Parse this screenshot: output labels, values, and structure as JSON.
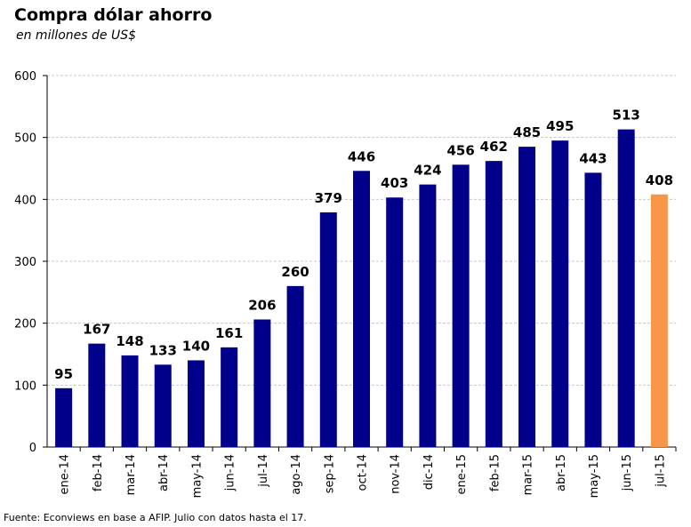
{
  "title": "Compra dólar ahorro",
  "subtitle": "en millones de US$",
  "source": "Fuente: Econviews en base a AFIP. Julio con datos hasta el 17.",
  "colors": {
    "bar": "#00008B",
    "highlight": "#F79646",
    "grid": "#C8C8C8"
  },
  "chart_data": {
    "type": "bar",
    "categories": [
      "ene-14",
      "feb-14",
      "mar-14",
      "abr-14",
      "may-14",
      "jun-14",
      "jul-14",
      "ago-14",
      "sep-14",
      "oct-14",
      "nov-14",
      "dic-14",
      "ene-15",
      "feb-15",
      "mar-15",
      "abr-15",
      "may-15",
      "jun-15",
      "jul-15"
    ],
    "values": [
      95,
      167,
      148,
      133,
      140,
      161,
      206,
      260,
      379,
      446,
      403,
      424,
      456,
      462,
      485,
      495,
      443,
      513,
      408
    ],
    "data_labels": [
      "95",
      "167",
      "148",
      "133",
      "140",
      "161",
      "206",
      "260",
      "379",
      "446",
      "403",
      "424",
      "456",
      "462",
      "485",
      "495",
      "443",
      "513",
      "408"
    ],
    "highlighted_category": "jul-15",
    "ylim": [
      0,
      600
    ],
    "yticks": [
      0,
      100,
      200,
      300,
      400,
      500,
      600
    ],
    "ytick_labels": [
      "0",
      "100",
      "200",
      "300",
      "400",
      "500",
      "600"
    ],
    "grid": true,
    "legend": false
  }
}
